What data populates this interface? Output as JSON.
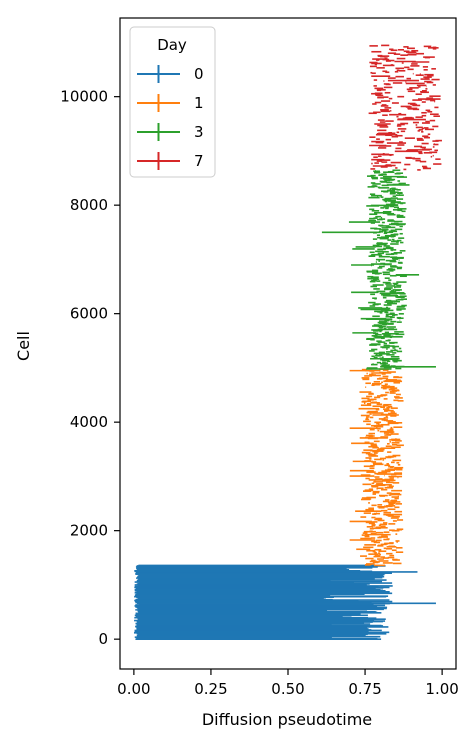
{
  "chart_data": {
    "type": "errorbar",
    "title": "",
    "xlabel": "Diffusion pseudotime",
    "ylabel": "Cell",
    "xlim": [
      -0.045,
      1.045
    ],
    "ylim": [
      -550,
      11450
    ],
    "xticks": [
      0.0,
      0.25,
      0.5,
      0.75,
      1.0
    ],
    "xtick_labels": [
      "0.00",
      "0.25",
      "0.50",
      "0.75",
      "1.00"
    ],
    "yticks": [
      0,
      2000,
      4000,
      6000,
      8000,
      10000
    ],
    "ytick_labels": [
      "0",
      "2000",
      "4000",
      "6000",
      "8000",
      "10000"
    ],
    "grid": false,
    "legend": {
      "title": "Day",
      "placement": "top-left"
    },
    "series": [
      {
        "name": "0",
        "color": "#1f77b4",
        "cell_range": [
          0,
          1360
        ],
        "center_range": [
          0.0,
          0.02
        ],
        "xerr_extent_range": [
          0.55,
          0.98
        ],
        "min_pseudotime": 0.0,
        "max_pseudotime": 0.98
      },
      {
        "name": "1",
        "color": "#ff7f0e",
        "cell_range": [
          1360,
          4980
        ],
        "center_range": [
          0.75,
          0.86
        ],
        "min_pseudotime": 0.7,
        "max_pseudotime": 0.87
      },
      {
        "name": "3",
        "color": "#2ca02c",
        "cell_range": [
          4980,
          8650
        ],
        "center_range": [
          0.77,
          0.87
        ],
        "min_pseudotime": 0.61,
        "max_pseudotime": 0.98
      },
      {
        "name": "7",
        "color": "#d62728",
        "cell_range": [
          8650,
          10950
        ],
        "center_range": [
          0.77,
          0.98
        ],
        "min_pseudotime": 0.77,
        "max_pseudotime": 0.98
      }
    ]
  }
}
